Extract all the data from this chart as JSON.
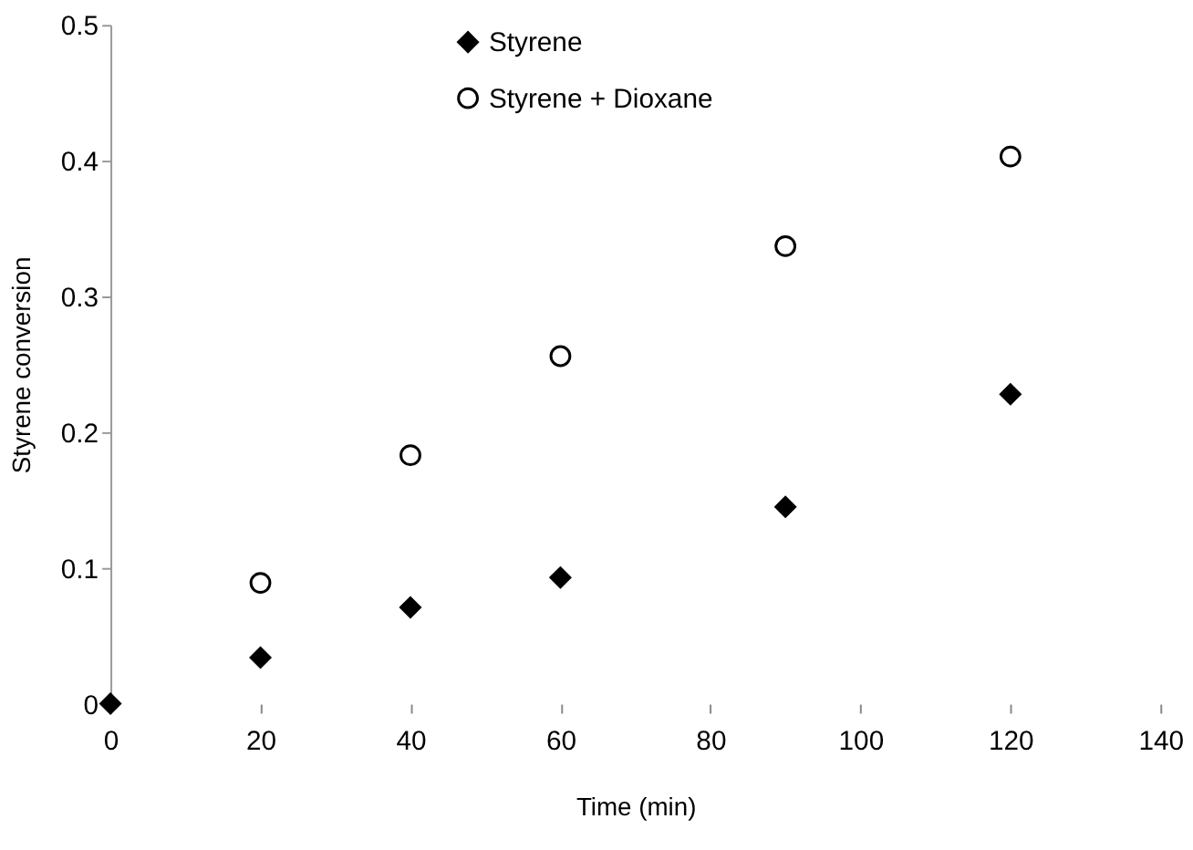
{
  "chart_data": {
    "type": "scatter",
    "xlabel": "Time (min)",
    "ylabel": "Styrene conversion",
    "x": [
      0,
      20,
      40,
      60,
      90,
      120
    ],
    "series": [
      {
        "name": "Styrene",
        "color": "#000000",
        "marker": "diamond",
        "values": [
          0,
          0.034,
          0.071,
          0.093,
          0.145,
          0.228
        ]
      },
      {
        "name": "Styrene + Dioxane",
        "color": "#000000",
        "marker": "circle",
        "values": [
          null,
          0.089,
          0.183,
          0.256,
          0.337,
          0.403
        ]
      }
    ],
    "xlim": [
      0,
      140
    ],
    "xticks": [
      0,
      20,
      40,
      60,
      80,
      100,
      120,
      140
    ],
    "ylim": [
      0,
      0.5
    ],
    "yticks": [
      0,
      0.1,
      0.2,
      0.3,
      0.4,
      0.5
    ],
    "grid": false,
    "legend": "top left"
  }
}
